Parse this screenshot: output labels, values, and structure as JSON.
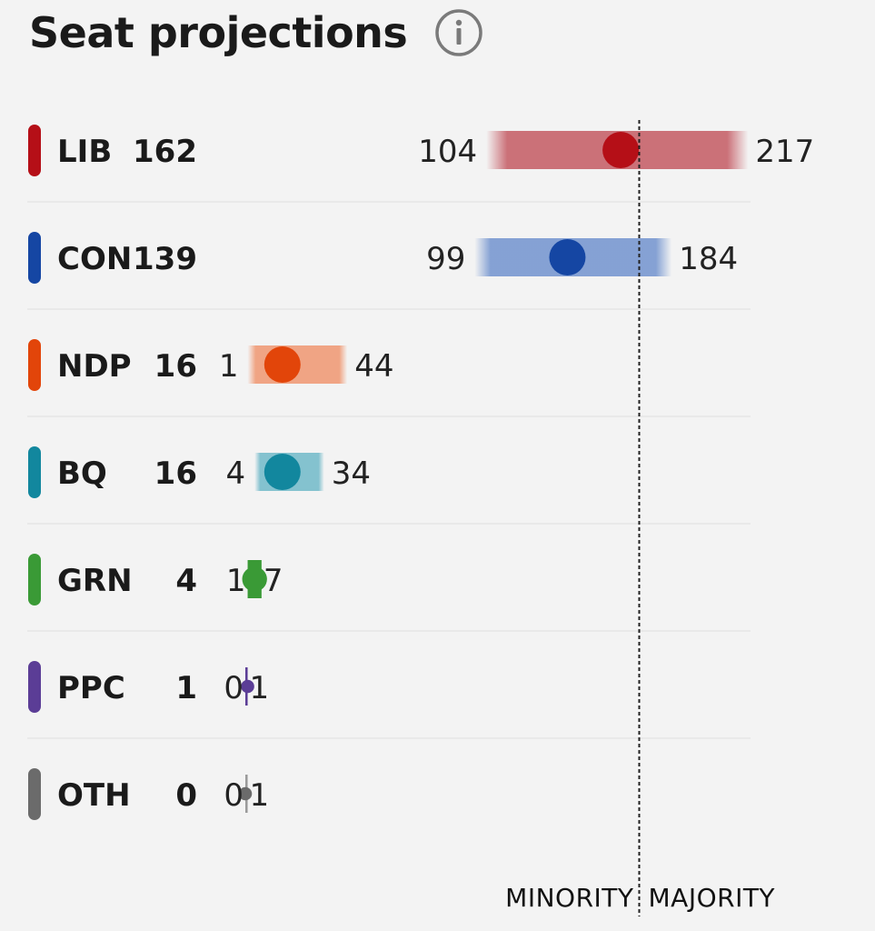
{
  "header": {
    "title": "Seat projections",
    "info_icon": "info-circle-icon"
  },
  "chart_data": {
    "type": "range-dot",
    "title": "Seat projections",
    "majority_line": 170,
    "zone_labels": [
      "MINORITY",
      "MAJORITY"
    ],
    "parties": [
      {
        "name": "LIB",
        "projection": 162,
        "low": 104,
        "high": 217,
        "color": "#b50f17",
        "band": "#c96a72"
      },
      {
        "name": "CON",
        "projection": 139,
        "low": 99,
        "high": 184,
        "color": "#1546a3",
        "band": "#7f9dd2"
      },
      {
        "name": "NDP",
        "projection": 16,
        "low": 1,
        "high": 44,
        "color": "#e2450a",
        "band": "#f0a07e"
      },
      {
        "name": "BQ",
        "projection": 16,
        "low": 4,
        "high": 34,
        "color": "#12879e",
        "band": "#7ebfcd"
      },
      {
        "name": "GRN",
        "projection": 4,
        "low": 1,
        "high": 7,
        "color": "#3a9a36",
        "band": "#3a9a36"
      },
      {
        "name": "PPC",
        "projection": 1,
        "low": 0,
        "high": 1,
        "color": "#5b3d96",
        "band": "#5b3d96"
      },
      {
        "name": "OTH",
        "projection": 0,
        "low": 0,
        "high": 1,
        "color": "#6b6b6b",
        "band": "#9a9a9a"
      }
    ]
  }
}
